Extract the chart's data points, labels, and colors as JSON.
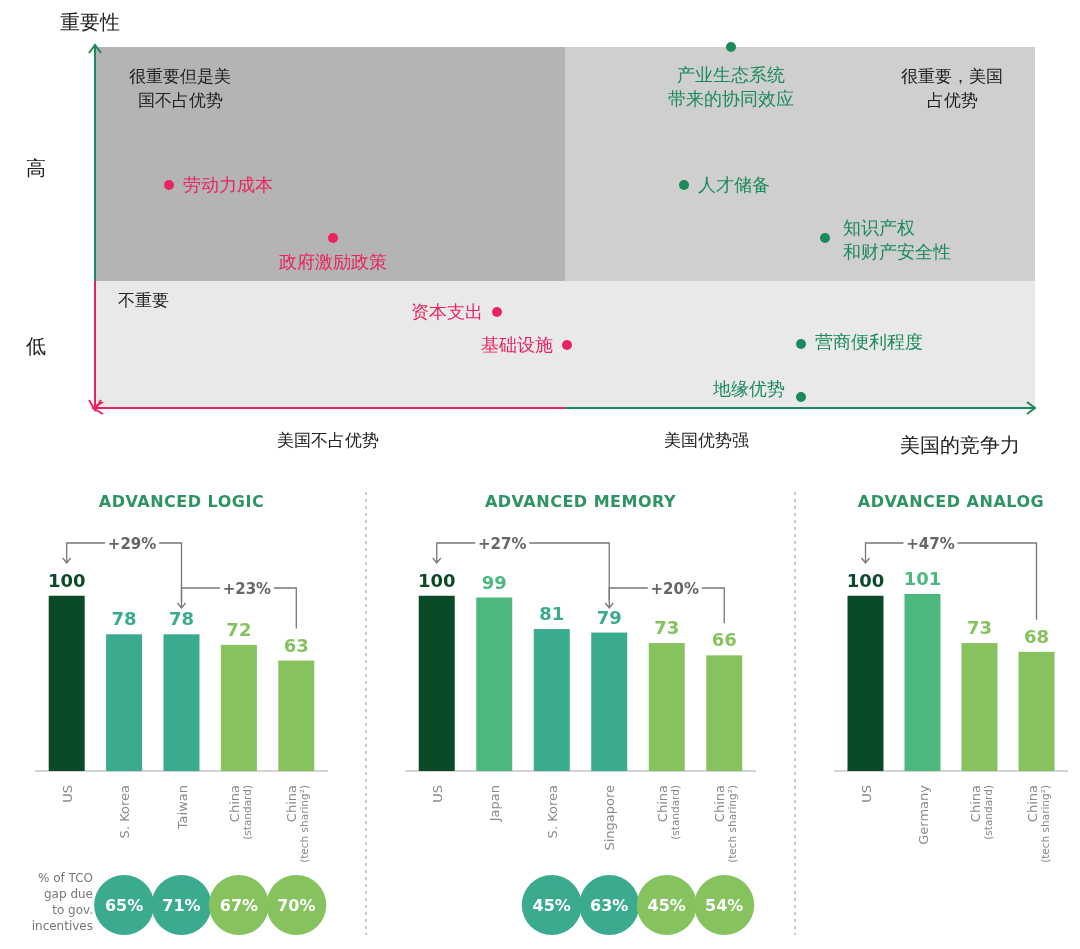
{
  "chart_data": [
    {
      "type": "other",
      "xlabel": "美国的竞争力",
      "ylabel": "重要性",
      "colors": [
        "#e8245f",
        "#e8245f",
        "#e8245f",
        "#e8245f",
        "#1b8a5a",
        "#1b8a5a",
        "#1b8a5a",
        "#1b8a5a",
        "#1b8a5a"
      ],
      "annotations": [
        "高",
        "低",
        "美国不占优势",
        "美国优势强",
        "很重要但是美国不占优势",
        "很重要，美国占优势",
        "不重要",
        "劳动力成本",
        "政府激励政策",
        "资本支出",
        "基础设施",
        "产业生态系统带来的协同效应",
        "人才储备",
        "知识产权和财产安全性",
        "营商便利程度",
        "地缘优势"
      ]
    },
    {
      "type": "bar",
      "title": "ADVANCED LOGIC",
      "data_labels": true,
      "categories": [
        "US",
        "S. Korea",
        "Taiwan",
        "China$_{(standard)}$",
        "China$_{(tech sharing²)}$"
      ],
      "values": [
        100,
        78,
        78,
        72,
        63
      ],
      "colors": [
        "#0b4a27",
        "#3aab8f",
        "#3aab8f",
        "#86c35f",
        "#86c35f"
      ],
      "annotations": [
        "+29%",
        "+23%",
        "% of TCO gap due to gov. incentives",
        "65%",
        "71%",
        "67%",
        "70%"
      ]
    },
    {
      "type": "bar",
      "title": "ADVANCED MEMORY",
      "data_labels": true,
      "categories": [
        "US",
        "Japan",
        "S. Korea",
        "Singapore",
        "China$_{(standard)}$",
        "China$_{(tech sharing²)}$"
      ],
      "values": [
        100,
        99,
        81,
        79,
        73,
        66
      ],
      "colors": [
        "#0b4a27",
        "#4cb87e",
        "#3aab8f",
        "#3aab8f",
        "#86c35f",
        "#86c35f"
      ],
      "annotations": [
        "+27%",
        "+20%",
        "45%",
        "63%",
        "45%",
        "54%"
      ]
    },
    {
      "type": "bar",
      "title": "ADVANCED ANALOG",
      "data_labels": true,
      "categories": [
        "US",
        "Germany",
        "China$_{(standard)}$",
        "China$_{(tech sharing²)}$"
      ],
      "values": [
        100,
        101,
        73,
        68
      ],
      "colors": [
        "#0b4a27",
        "#4cb87e",
        "#86c35f",
        "#86c35f"
      ],
      "annotations": [
        "+47%"
      ]
    }
  ]
}
